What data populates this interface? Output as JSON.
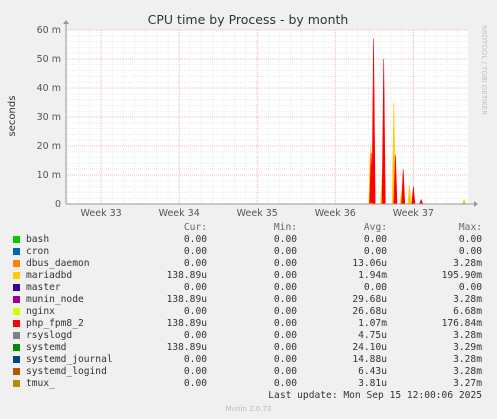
{
  "chart_data": {
    "type": "area",
    "title": "CPU time by Process - by month",
    "ylabel": "seconds",
    "side_label": "RRDTOOL / TOBI OETIKER",
    "ylim": [
      0,
      0.06
    ],
    "y_ticks": [
      "0",
      "10 m",
      "20 m",
      "30 m",
      "40 m",
      "50 m",
      "60 m"
    ],
    "x_ticks": [
      "Week 33",
      "Week 34",
      "Week 35",
      "Week 36",
      "Week 37"
    ],
    "x_range_weeks": [
      32.55,
      37.7
    ],
    "spikes": [
      {
        "series": "mariadbd",
        "x": 36.45,
        "y": 0.0196
      },
      {
        "series": "php_fpm8_2",
        "x": 36.46,
        "y": 0.0177
      },
      {
        "series": "nginx",
        "x": 36.47,
        "y": 0.0007
      },
      {
        "series": "php_fpm8_2",
        "x": 36.49,
        "y": 0.057
      },
      {
        "series": "mariadbd",
        "x": 36.6,
        "y": 0.0095
      },
      {
        "series": "php_fpm8_2",
        "x": 36.62,
        "y": 0.05
      },
      {
        "series": "mariadbd",
        "x": 36.75,
        "y": 0.035
      },
      {
        "series": "php_fpm8_2",
        "x": 36.77,
        "y": 0.017
      },
      {
        "series": "mariadbd",
        "x": 36.85,
        "y": 0.0045
      },
      {
        "series": "php_fpm8_2",
        "x": 36.87,
        "y": 0.012
      },
      {
        "series": "mariadbd",
        "x": 36.95,
        "y": 0.0065
      },
      {
        "series": "php_fpm8_2",
        "x": 37.0,
        "y": 0.006
      },
      {
        "series": "php_fpm8_2",
        "x": 37.1,
        "y": 0.0015
      },
      {
        "series": "mariadbd",
        "x": 37.65,
        "y": 0.0015
      }
    ]
  },
  "legend": {
    "headers": {
      "cur": "Cur:",
      "min": "Min:",
      "avg": "Avg:",
      "max": "Max:"
    },
    "rows": [
      {
        "name": "bash",
        "color": "#00cc00",
        "cur": "0.00",
        "min": "0.00",
        "avg": "0.00",
        "max": "0.00"
      },
      {
        "name": "cron",
        "color": "#0066b3",
        "cur": "0.00",
        "min": "0.00",
        "avg": "0.00",
        "max": "0.00"
      },
      {
        "name": "dbus_daemon",
        "color": "#ff8000",
        "cur": "0.00",
        "min": "0.00",
        "avg": "13.06u",
        "max": "3.28m"
      },
      {
        "name": "mariadbd",
        "color": "#ffcc00",
        "cur": "138.89u",
        "min": "0.00",
        "avg": "1.94m",
        "max": "195.90m"
      },
      {
        "name": "master",
        "color": "#330099",
        "cur": "0.00",
        "min": "0.00",
        "avg": "0.00",
        "max": "0.00"
      },
      {
        "name": "munin_node",
        "color": "#990099",
        "cur": "138.89u",
        "min": "0.00",
        "avg": "29.68u",
        "max": "3.28m"
      },
      {
        "name": "nginx",
        "color": "#ccff00",
        "cur": "0.00",
        "min": "0.00",
        "avg": "26.68u",
        "max": "6.68m"
      },
      {
        "name": "php_fpm8_2",
        "color": "#ff0000",
        "cur": "138.89u",
        "min": "0.00",
        "avg": "1.07m",
        "max": "176.84m"
      },
      {
        "name": "rsyslogd",
        "color": "#808080",
        "cur": "0.00",
        "min": "0.00",
        "avg": "4.75u",
        "max": "3.28m"
      },
      {
        "name": "systemd",
        "color": "#008f00",
        "cur": "138.89u",
        "min": "0.00",
        "avg": "24.10u",
        "max": "3.29m"
      },
      {
        "name": "systemd_journal",
        "color": "#00487d",
        "cur": "0.00",
        "min": "0.00",
        "avg": "14.88u",
        "max": "3.28m"
      },
      {
        "name": "systemd_logind",
        "color": "#b35a00",
        "cur": "0.00",
        "min": "0.00",
        "avg": "6.43u",
        "max": "3.28m"
      },
      {
        "name": "tmux_",
        "color": "#b38f00",
        "cur": "0.00",
        "min": "0.00",
        "avg": "3.81u",
        "max": "3.27m"
      }
    ]
  },
  "last_update": "Last update: Mon Sep 15 12:00:06 2025",
  "footer": "Munin 2.0.73"
}
